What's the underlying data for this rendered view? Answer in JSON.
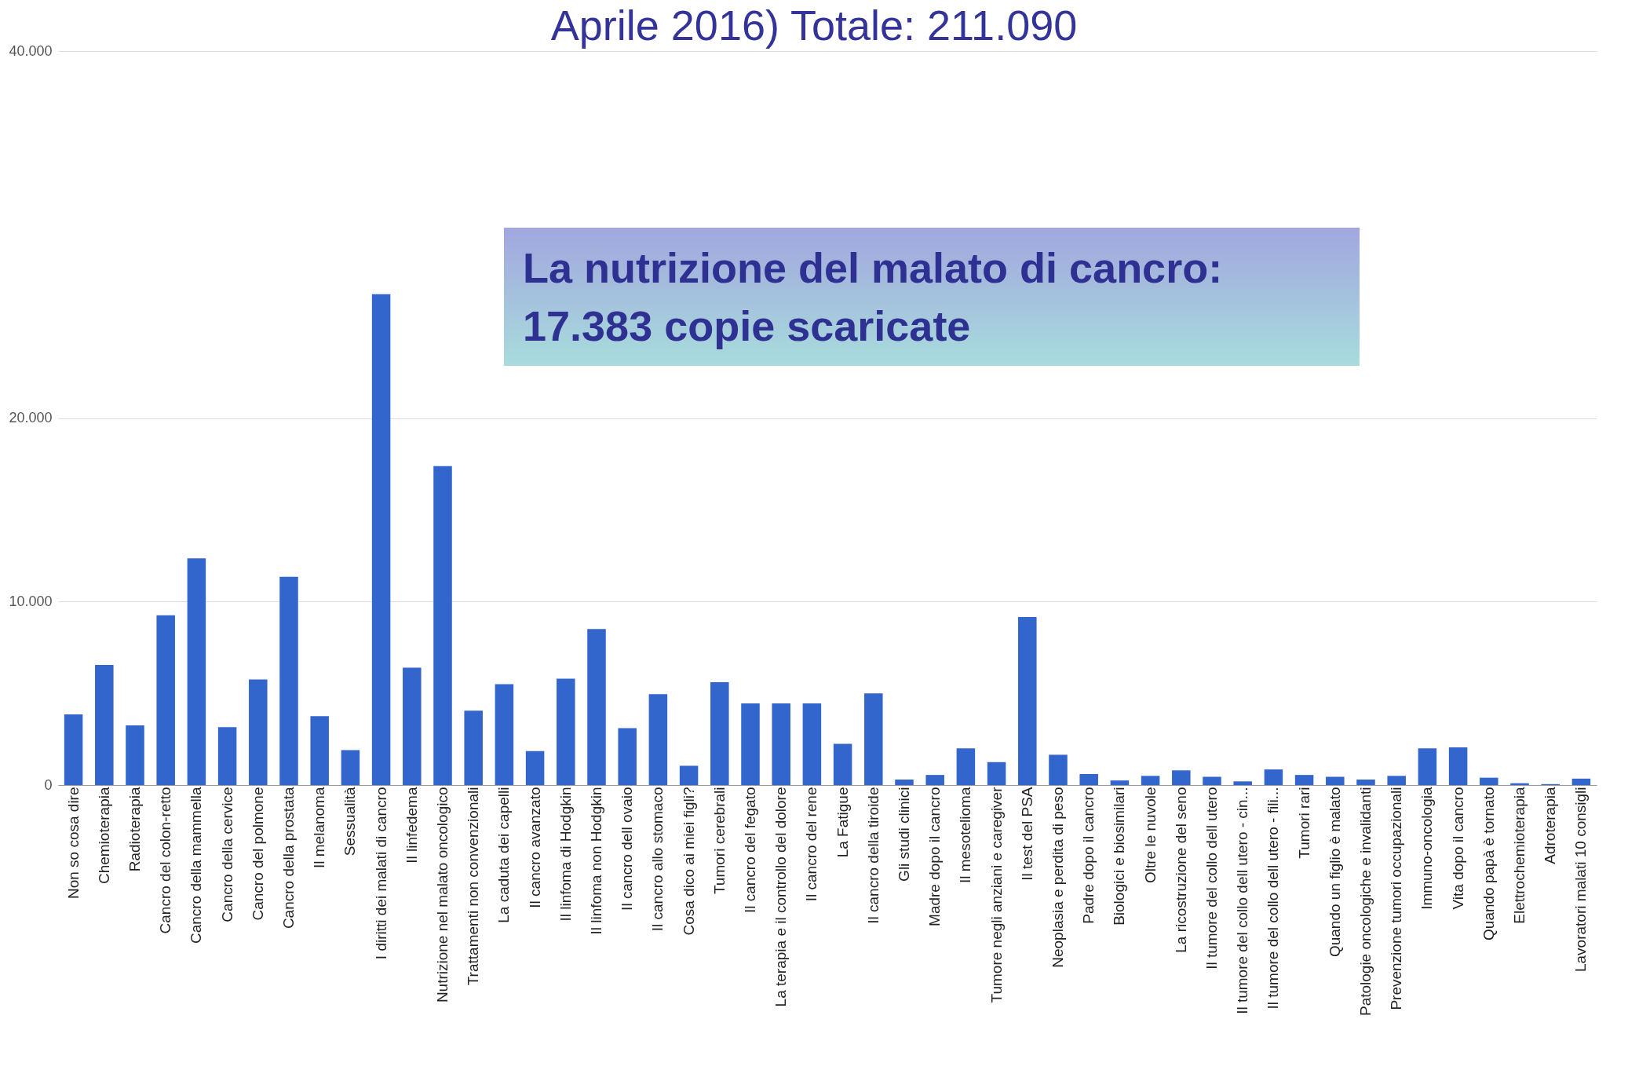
{
  "chart_data": {
    "type": "bar",
    "title": "Aprile 2016) Totale: 211.090",
    "categories": [
      "Non so cosa dire",
      "Chemioterapia",
      "Radioterapia",
      "Cancro del colon-retto",
      "Cancro della mammella",
      "Cancro della cervice",
      "Cancro del polmone",
      "Cancro della prostata",
      "Il melanoma",
      "Sessualità",
      "I diritti dei malati di cancro",
      "Il linfedema",
      "Nutrizione nel malato oncologico",
      "Trattamenti non convenzionali",
      "La caduta dei capelli",
      "Il cancro avanzato",
      "Il linfoma di Hodgkin",
      "Il linfoma non Hodgkin",
      "Il cancro dell ovaio",
      "Il cancro allo stomaco",
      "Cosa dico ai miei figli?",
      "Tumori cerebrali",
      "Il cancro del fegato",
      "La terapia e il controllo del dolore",
      "Il cancro del rene",
      "La Fatigue",
      "Il cancro della tiroide",
      "Gli studi clinici",
      "Madre dopo il cancro",
      "Il mesotelioma",
      "Tumore negli anziani e caregiver",
      "Il test del PSA",
      "Neoplasia e perdita di peso",
      "Padre dopo il cancro",
      "Biologici e biosimilari",
      "Oltre le nuvole",
      "La ricostruzione del seno",
      "Il tumore del collo dell utero",
      "Il tumore del collo dell utero - cin...",
      "Il tumore del collo dell utero - fili...",
      "Tumori rari",
      "Quando un figlio è malato",
      "Patologie oncologiche e invalidanti",
      "Prevenzione tumori occupazionali",
      "Immuno-oncologia",
      "Vita dopo il cancro",
      "Quando papà è tornato",
      "Elettrochemioterapia",
      "Adroterapia",
      "Lavoratori malati 10 consigli"
    ],
    "values": [
      3850,
      6550,
      3250,
      9250,
      12350,
      3150,
      5750,
      11350,
      3750,
      1900,
      26750,
      6400,
      17383,
      4050,
      5500,
      1850,
      5800,
      8500,
      3100,
      4950,
      1050,
      5600,
      4450,
      4450,
      4450,
      2250,
      5000,
      300,
      550,
      2000,
      1250,
      9150,
      1650,
      600,
      250,
      500,
      800,
      450,
      200,
      850,
      550,
      450,
      300,
      500,
      2000,
      2050,
      400,
      100,
      50,
      350
    ],
    "color": "#3366cc",
    "ylim": [
      0,
      40000
    ],
    "yticks": [
      0,
      {
        "value": 10000,
        "label": "10.000"
      },
      {
        "value": 20000,
        "label": "20.000"
      },
      {
        "value": 40000,
        "label": "40.000"
      }
    ],
    "grid": "y",
    "annotations": [
      "La nutrizione del malato di cancro: 17.383 copie scaricate"
    ]
  }
}
